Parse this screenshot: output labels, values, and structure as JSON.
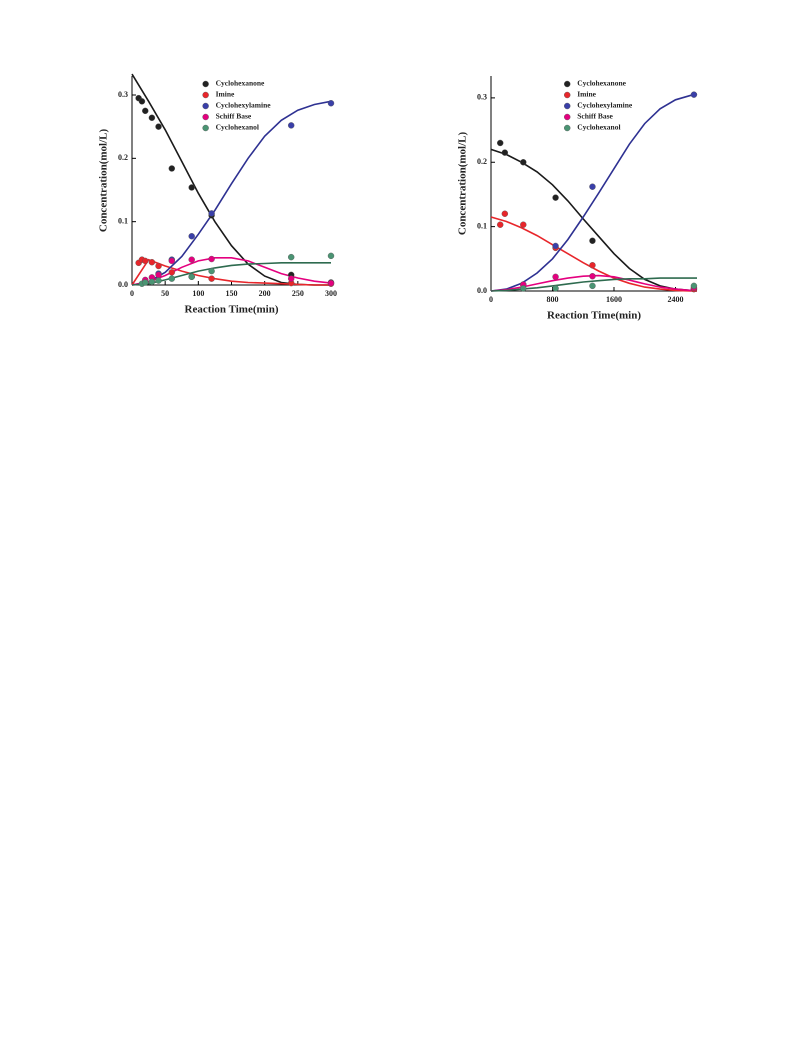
{
  "chart_data": [
    {
      "type": "scatter",
      "xlabel": "Reaction Time(min)",
      "ylabel": "Concentration(mol/L)",
      "xlim": [
        0,
        300
      ],
      "ylim": [
        0,
        0.33
      ],
      "xticks": [
        0,
        50,
        100,
        150,
        200,
        250,
        300
      ],
      "yticks": [
        {
          "value": 0,
          "label": "0.0"
        },
        0.1,
        0.2,
        0.3
      ],
      "legend": "upper center",
      "fit_x": [
        0,
        25,
        50,
        75,
        100,
        125,
        150,
        175,
        200,
        225,
        250,
        275,
        300
      ],
      "series": [
        {
          "name": "Cyclohexanone",
          "color": "#222222",
          "line_color": "#1a1a1a",
          "x": [
            10,
            15,
            20,
            30,
            40,
            60,
            90,
            120,
            240,
            300
          ],
          "values": [
            0.295,
            0.29,
            0.275,
            0.264,
            0.25,
            0.184,
            0.154,
            0.11,
            0.016,
            0.004
          ],
          "fit": [
            0.333,
            0.29,
            0.245,
            0.195,
            0.145,
            0.1,
            0.062,
            0.033,
            0.014,
            0.004,
            0.001,
            0,
            0
          ]
        },
        {
          "name": "Imine",
          "color": "#e8262b",
          "line_color": "#e8262b",
          "x": [
            10,
            15,
            20,
            30,
            40,
            60,
            90,
            120,
            240,
            300
          ],
          "values": [
            0.035,
            0.04,
            0.038,
            0.036,
            0.03,
            0.02,
            0.013,
            0.01,
            0.003,
            0.002
          ],
          "fit": [
            0,
            0.04,
            0.03,
            0.022,
            0.015,
            0.01,
            0.006,
            0.004,
            0.003,
            0.002,
            0.001,
            0,
            0
          ]
        },
        {
          "name": "Cyclohexylamine",
          "color": "#3a3fa8",
          "line_color": "#2e3192",
          "x": [
            20,
            40,
            60,
            90,
            120,
            240,
            300
          ],
          "values": [
            0.005,
            0.018,
            0.04,
            0.077,
            0.113,
            0.252,
            0.287
          ],
          "fit": [
            0,
            0.005,
            0.02,
            0.045,
            0.08,
            0.118,
            0.16,
            0.2,
            0.235,
            0.26,
            0.276,
            0.285,
            0.29
          ]
        },
        {
          "name": "Schiff Base",
          "color": "#e4007f",
          "line_color": "#e4007f",
          "x": [
            20,
            30,
            40,
            60,
            90,
            120,
            240,
            300
          ],
          "values": [
            0.008,
            0.012,
            0.016,
            0.038,
            0.04,
            0.041,
            0.01,
            0.003
          ],
          "fit": [
            0,
            0.005,
            0.015,
            0.028,
            0.038,
            0.043,
            0.043,
            0.038,
            0.028,
            0.018,
            0.011,
            0.006,
            0.003
          ]
        },
        {
          "name": "Cyclohexanol",
          "color": "#4a9473",
          "line_color": "#2e6b4f",
          "x": [
            15,
            20,
            30,
            40,
            60,
            90,
            120,
            240,
            300
          ],
          "values": [
            0.002,
            0.004,
            0.005,
            0.007,
            0.01,
            0.013,
            0.022,
            0.044,
            0.046
          ],
          "fit": [
            0,
            0.002,
            0.008,
            0.015,
            0.022,
            0.027,
            0.031,
            0.033,
            0.034,
            0.035,
            0.035,
            0.035,
            0.035
          ]
        }
      ]
    },
    {
      "type": "scatter",
      "xlabel": "Reaction Time(min)",
      "ylabel": "Concentration(mol/L)",
      "xlim": [
        0,
        2680
      ],
      "ylim": [
        0,
        0.334
      ],
      "xticks": [
        0,
        800,
        1600,
        2400
      ],
      "yticks": [
        {
          "value": 0,
          "label": "0.0"
        },
        0.1,
        0.2,
        0.3
      ],
      "legend": "upper center",
      "fit_x": [
        0,
        200,
        400,
        600,
        800,
        1000,
        1200,
        1400,
        1600,
        1800,
        2000,
        2200,
        2400,
        2600,
        2680
      ],
      "series": [
        {
          "name": "Cyclohexanone",
          "color": "#222222",
          "line_color": "#1a1a1a",
          "x": [
            120,
            180,
            420,
            840,
            1320,
            2640
          ],
          "values": [
            0.23,
            0.215,
            0.2,
            0.145,
            0.078,
            0.003
          ],
          "fit": [
            0.22,
            0.212,
            0.2,
            0.185,
            0.165,
            0.14,
            0.112,
            0.085,
            0.058,
            0.035,
            0.018,
            0.008,
            0.003,
            0.001,
            0
          ]
        },
        {
          "name": "Imine",
          "color": "#e8262b",
          "line_color": "#e8262b",
          "x": [
            120,
            180,
            420,
            840,
            1320,
            2640
          ],
          "values": [
            0.103,
            0.12,
            0.103,
            0.067,
            0.04,
            0.003
          ],
          "fit": [
            0.115,
            0.108,
            0.098,
            0.086,
            0.072,
            0.058,
            0.044,
            0.031,
            0.02,
            0.012,
            0.006,
            0.003,
            0.001,
            0,
            0
          ]
        },
        {
          "name": "Cyclohexylamine",
          "color": "#3a3fa8",
          "line_color": "#2e3192",
          "x": [
            420,
            840,
            1320,
            2640
          ],
          "values": [
            0.01,
            0.07,
            0.162,
            0.305
          ],
          "fit": [
            0,
            0.003,
            0.012,
            0.028,
            0.05,
            0.08,
            0.115,
            0.152,
            0.19,
            0.228,
            0.26,
            0.283,
            0.297,
            0.304,
            0.306
          ]
        },
        {
          "name": "Schiff Base",
          "color": "#e4007f",
          "line_color": "#e4007f",
          "x": [
            420,
            840,
            1320,
            2640
          ],
          "values": [
            0.01,
            0.022,
            0.023,
            0.005
          ],
          "fit": [
            0,
            0.002,
            0.006,
            0.011,
            0.016,
            0.02,
            0.023,
            0.024,
            0.022,
            0.017,
            0.011,
            0.006,
            0.003,
            0.001,
            0.001
          ]
        },
        {
          "name": "Cyclohexanol",
          "color": "#4a9473",
          "line_color": "#2e6b4f",
          "x": [
            420,
            840,
            1320,
            2640
          ],
          "values": [
            0.004,
            0.004,
            0.008,
            0.008
          ],
          "fit": [
            0,
            0.001,
            0.003,
            0.005,
            0.008,
            0.011,
            0.014,
            0.016,
            0.018,
            0.019,
            0.019,
            0.02,
            0.02,
            0.02,
            0.02
          ]
        }
      ]
    }
  ]
}
